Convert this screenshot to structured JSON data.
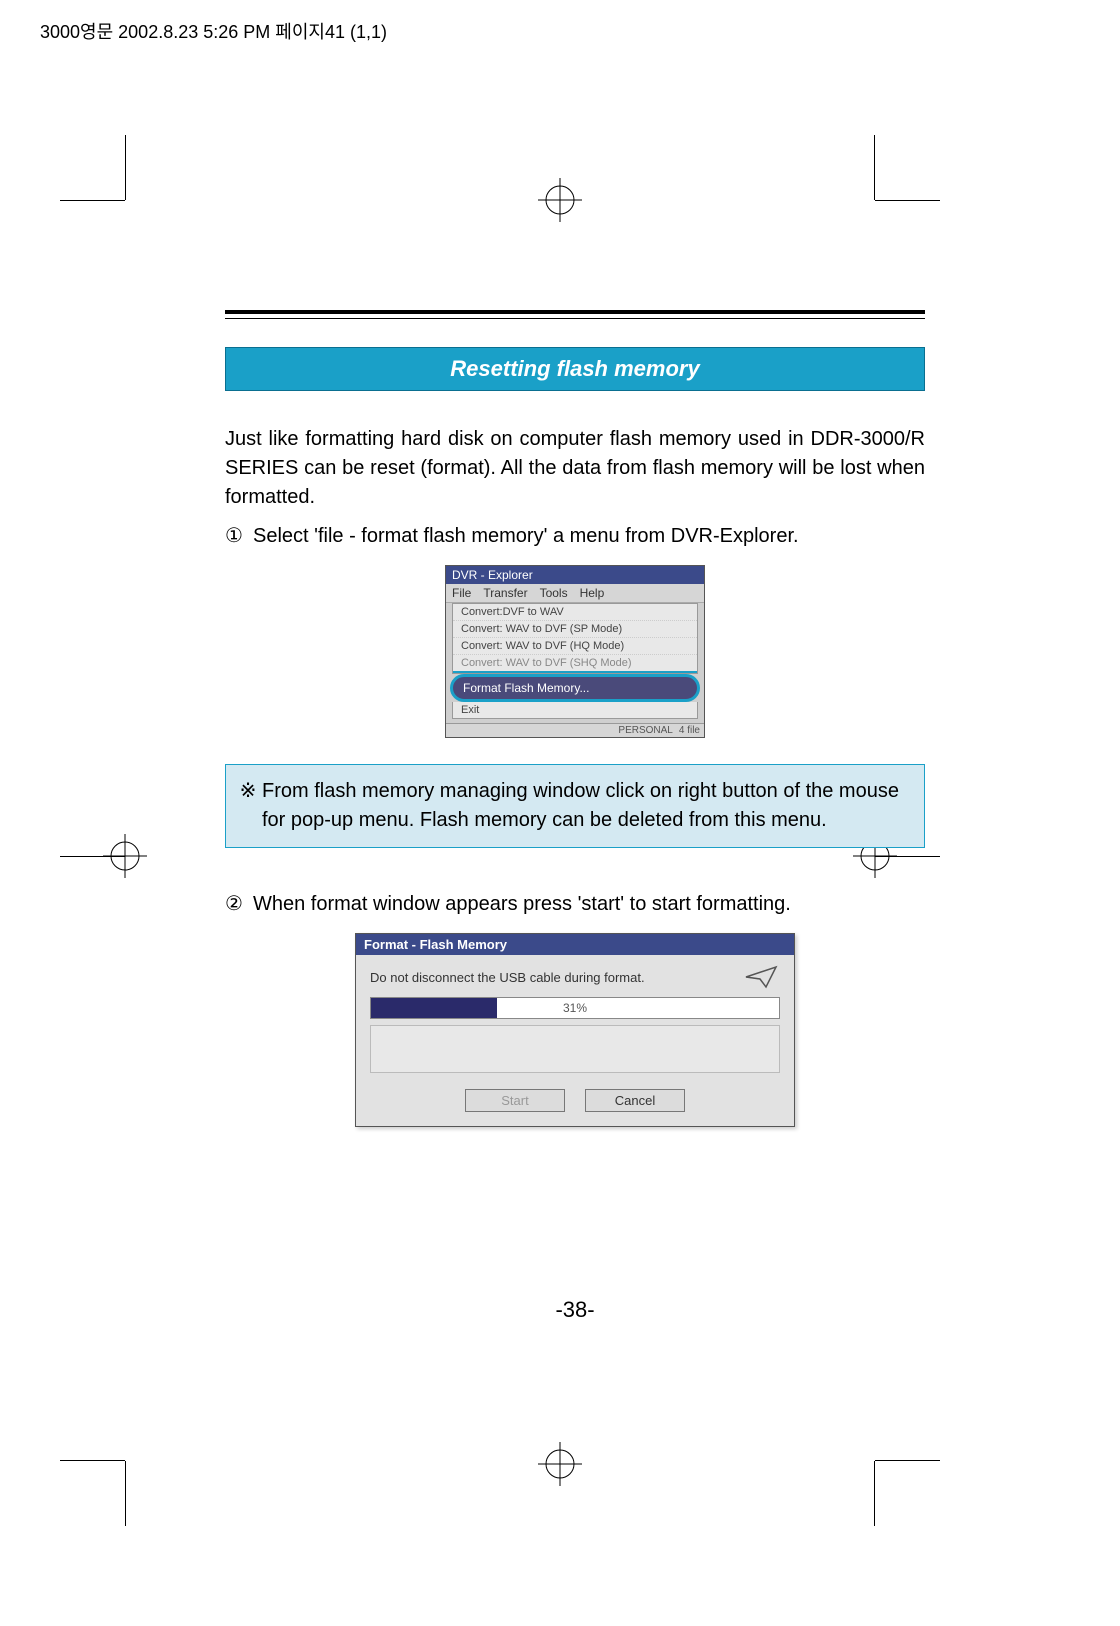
{
  "print_header": "3000영문  2002.8.23 5:26 PM  페이지41 (1,1)",
  "section_title": "Resetting flash memory",
  "intro_text": "Just like formatting hard disk on computer flash memory used in DDR-3000/R SERIES can be reset (format). All the data from flash memory will be lost when formatted.",
  "step1_num": "①",
  "step1_text": "Select 'file - format flash memory' a menu from DVR-Explorer.",
  "fig1": {
    "title": "DVR - Explorer",
    "menubar": {
      "file": "File",
      "transfer": "Transfer",
      "tools": "Tools",
      "help": "Help"
    },
    "menu_items": {
      "m1": "Convert:DVF to WAV",
      "m2": "Convert: WAV to DVF (SP Mode)",
      "m3": "Convert: WAV to DVF (HQ Mode)",
      "m4_cut": "Convert: WAV to DVF (SHQ Mode)",
      "highlight": "Format Flash Memory...",
      "exit": "Exit"
    },
    "status_left": "PERSONAL",
    "status_right": "4 file"
  },
  "note_symbol": "※",
  "note_text": "From flash memory managing window click on right button of the mouse for pop-up menu. Flash memory can be deleted from this menu.",
  "step2_num": "②",
  "step2_text": "When format window appears press 'start' to start formatting.",
  "fig2": {
    "title": "Format - Flash Memory",
    "message": "Do not disconnect the USB cable during format.",
    "progress_percent": 31,
    "progress_label": "31%",
    "btn_start": "Start",
    "btn_cancel": "Cancel"
  },
  "page_number": "-38-",
  "colors": {
    "accent": "#1aa0c8",
    "note_bg": "#d4e9f2",
    "dlg_title": "#3b4a8a"
  }
}
